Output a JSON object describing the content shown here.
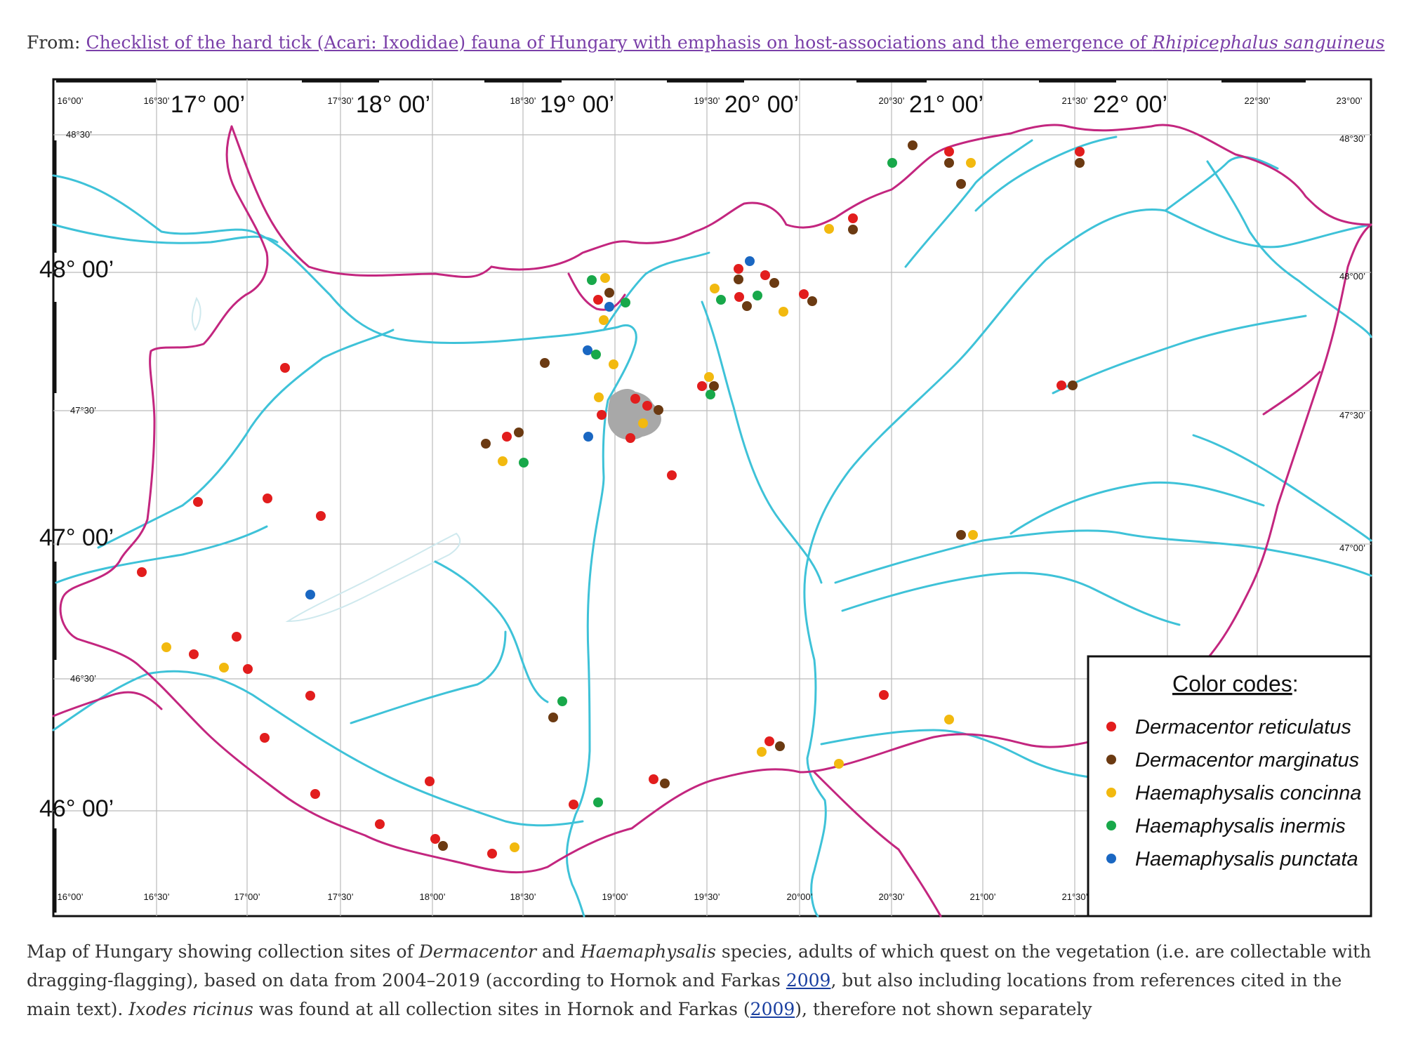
{
  "header": {
    "prefix": "From: ",
    "link_text": "Checklist of the hard tick (Acari: Ixodidae) fauna of Hungary with emphasis on host-associations and the emergence of ",
    "link_italic": "Rhipicephalus sanguineus"
  },
  "map": {
    "top_major": [
      "17° 00’",
      "18° 00’",
      "19° 00’",
      "20° 00’",
      "21° 00’",
      "22° 00’"
    ],
    "top_minor": [
      "16°00’",
      "16°30’",
      "17°30’",
      "18°30’",
      "19°30’",
      "20°30’",
      "21°30’",
      "22°30’",
      "23°00’"
    ],
    "left_major": [
      "48° 00’",
      "47° 00’",
      "46° 00’"
    ],
    "left_minor": [
      "48°30’",
      "47°30’",
      "46°30’"
    ],
    "right_minor": [
      "48°30’",
      "48°00’",
      "47°30’",
      "47°00’"
    ],
    "bottom_minor": [
      "16°00’",
      "16°30’",
      "17°00’",
      "17°30’",
      "18°00’",
      "18°30’",
      "19°00’",
      "19°30’",
      "20°00’",
      "20°30’",
      "21°00’",
      "21°30’"
    ]
  },
  "legend": {
    "title": "Color codes",
    "title_colon": ":",
    "items": [
      {
        "label": "Dermacentor reticulatus",
        "color": "#e21d1d"
      },
      {
        "label": "Dermacentor marginatus",
        "color": "#6b3a12"
      },
      {
        "label": "Haemaphysalis concinna",
        "color": "#f2b90f"
      },
      {
        "label": "Haemaphysalis inermis",
        "color": "#18a84a"
      },
      {
        "label": "Haemaphysalis punctata",
        "color": "#1a67c2"
      }
    ]
  },
  "colors": {
    "border": "#c3267f",
    "river": "#3ec2d8",
    "grid": "#bbbbbb",
    "budapest": "#a8a8a8"
  },
  "caption": {
    "t1": "Map of Hungary showing collection sites of ",
    "i1": "Dermacentor",
    "t2": " and ",
    "i2": "Haemaphysalis",
    "t3": " species, adults of which quest on the vegetation (i.e. are collectable with dragging-flagging), based on data from 2004–2019 (according to Hornok and Farkas ",
    "l1": "2009",
    "t4": ", but also including locations from references cited in the main text). ",
    "i3": "Ixodes ricinus",
    "t5": " was found at all collection sites in Hornok and Farkas (",
    "l2": "2009",
    "t6": "), therefore not shown separately"
  }
}
